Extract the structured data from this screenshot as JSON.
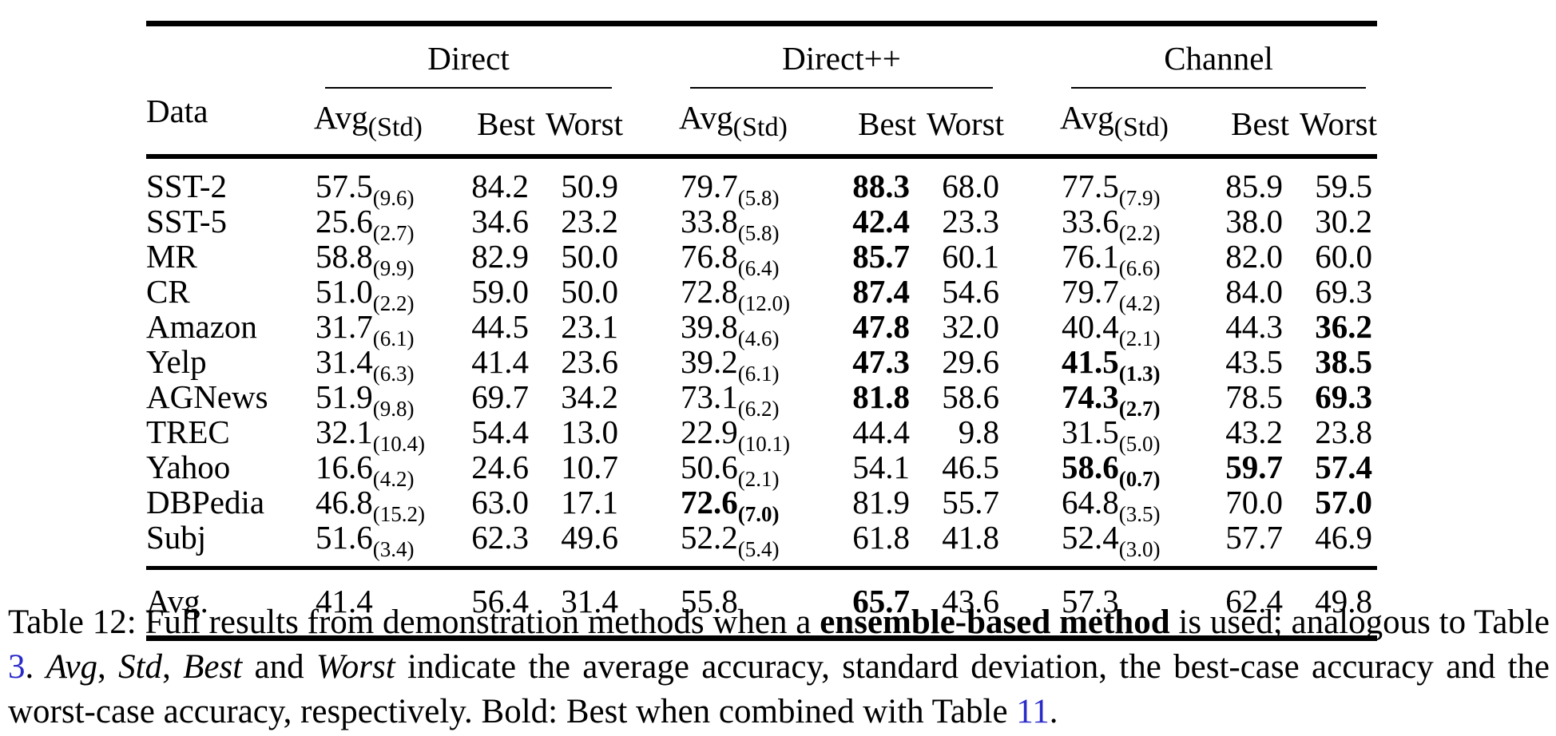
{
  "table": {
    "data_label": "Data",
    "avg_label": "Avg",
    "std_label": "(Std)",
    "best_label": "Best",
    "worst_label": "Worst",
    "groups": [
      "Direct",
      "Direct++",
      "Channel"
    ],
    "rows": [
      {
        "name": "SST-2",
        "cells": [
          {
            "v": "57.5",
            "s": "(9.6)"
          },
          {
            "v": "84.2"
          },
          {
            "v": "50.9"
          },
          {
            "v": "79.7",
            "s": "(5.8)"
          },
          {
            "v": "88.3",
            "b": 1
          },
          {
            "v": "68.0"
          },
          {
            "v": "77.5",
            "s": "(7.9)"
          },
          {
            "v": "85.9"
          },
          {
            "v": "59.5"
          }
        ]
      },
      {
        "name": "SST-5",
        "cells": [
          {
            "v": "25.6",
            "s": "(2.7)"
          },
          {
            "v": "34.6"
          },
          {
            "v": "23.2"
          },
          {
            "v": "33.8",
            "s": "(5.8)"
          },
          {
            "v": "42.4",
            "b": 1
          },
          {
            "v": "23.3"
          },
          {
            "v": "33.6",
            "s": "(2.2)"
          },
          {
            "v": "38.0"
          },
          {
            "v": "30.2"
          }
        ]
      },
      {
        "name": "MR",
        "cells": [
          {
            "v": "58.8",
            "s": "(9.9)"
          },
          {
            "v": "82.9"
          },
          {
            "v": "50.0"
          },
          {
            "v": "76.8",
            "s": "(6.4)"
          },
          {
            "v": "85.7",
            "b": 1
          },
          {
            "v": "60.1"
          },
          {
            "v": "76.1",
            "s": "(6.6)"
          },
          {
            "v": "82.0"
          },
          {
            "v": "60.0"
          }
        ]
      },
      {
        "name": "CR",
        "cells": [
          {
            "v": "51.0",
            "s": "(2.2)"
          },
          {
            "v": "59.0"
          },
          {
            "v": "50.0"
          },
          {
            "v": "72.8",
            "s": "(12.0)"
          },
          {
            "v": "87.4",
            "b": 1
          },
          {
            "v": "54.6"
          },
          {
            "v": "79.7",
            "s": "(4.2)"
          },
          {
            "v": "84.0"
          },
          {
            "v": "69.3"
          }
        ]
      },
      {
        "name": "Amazon",
        "cells": [
          {
            "v": "31.7",
            "s": "(6.1)"
          },
          {
            "v": "44.5"
          },
          {
            "v": "23.1"
          },
          {
            "v": "39.8",
            "s": "(4.6)"
          },
          {
            "v": "47.8",
            "b": 1
          },
          {
            "v": "32.0"
          },
          {
            "v": "40.4",
            "s": "(2.1)"
          },
          {
            "v": "44.3"
          },
          {
            "v": "36.2",
            "b": 1
          }
        ]
      },
      {
        "name": "Yelp",
        "cells": [
          {
            "v": "31.4",
            "s": "(6.3)"
          },
          {
            "v": "41.4"
          },
          {
            "v": "23.6"
          },
          {
            "v": "39.2",
            "s": "(6.1)"
          },
          {
            "v": "47.3",
            "b": 1
          },
          {
            "v": "29.6"
          },
          {
            "v": "41.5",
            "s": "(1.3)",
            "b": 1
          },
          {
            "v": "43.5"
          },
          {
            "v": "38.5",
            "b": 1
          }
        ]
      },
      {
        "name": "AGNews",
        "cells": [
          {
            "v": "51.9",
            "s": "(9.8)"
          },
          {
            "v": "69.7"
          },
          {
            "v": "34.2"
          },
          {
            "v": "73.1",
            "s": "(6.2)"
          },
          {
            "v": "81.8",
            "b": 1
          },
          {
            "v": "58.6"
          },
          {
            "v": "74.3",
            "s": "(2.7)",
            "b": 1
          },
          {
            "v": "78.5"
          },
          {
            "v": "69.3",
            "b": 1
          }
        ]
      },
      {
        "name": "TREC",
        "cells": [
          {
            "v": "32.1",
            "s": "(10.4)"
          },
          {
            "v": "54.4"
          },
          {
            "v": "13.0"
          },
          {
            "v": "22.9",
            "s": "(10.1)"
          },
          {
            "v": "44.4"
          },
          {
            "v": "9.8"
          },
          {
            "v": "31.5",
            "s": "(5.0)"
          },
          {
            "v": "43.2"
          },
          {
            "v": "23.8"
          }
        ]
      },
      {
        "name": "Yahoo",
        "cells": [
          {
            "v": "16.6",
            "s": "(4.2)"
          },
          {
            "v": "24.6"
          },
          {
            "v": "10.7"
          },
          {
            "v": "50.6",
            "s": "(2.1)"
          },
          {
            "v": "54.1"
          },
          {
            "v": "46.5"
          },
          {
            "v": "58.6",
            "s": "(0.7)",
            "b": 1
          },
          {
            "v": "59.7",
            "b": 1
          },
          {
            "v": "57.4",
            "b": 1
          }
        ]
      },
      {
        "name": "DBPedia",
        "cells": [
          {
            "v": "46.8",
            "s": "(15.2)"
          },
          {
            "v": "63.0"
          },
          {
            "v": "17.1"
          },
          {
            "v": "72.6",
            "s": "(7.0)",
            "b": 1
          },
          {
            "v": "81.9"
          },
          {
            "v": "55.7"
          },
          {
            "v": "64.8",
            "s": "(3.5)"
          },
          {
            "v": "70.0"
          },
          {
            "v": "57.0",
            "b": 1
          }
        ]
      },
      {
        "name": "Subj",
        "cells": [
          {
            "v": "51.6",
            "s": "(3.4)"
          },
          {
            "v": "62.3"
          },
          {
            "v": "49.6"
          },
          {
            "v": "52.2",
            "s": "(5.4)"
          },
          {
            "v": "61.8"
          },
          {
            "v": "41.8"
          },
          {
            "v": "52.4",
            "s": "(3.0)"
          },
          {
            "v": "57.7"
          },
          {
            "v": "46.9"
          }
        ]
      }
    ],
    "avg_row": {
      "name": "Avg.",
      "cells": [
        {
          "v": "41.4"
        },
        {
          "v": "56.4"
        },
        {
          "v": "31.4"
        },
        {
          "v": "55.8"
        },
        {
          "v": "65.7",
          "b": 1
        },
        {
          "v": "43.6"
        },
        {
          "v": "57.3"
        },
        {
          "v": "62.4"
        },
        {
          "v": "49.8"
        }
      ]
    }
  },
  "caption": {
    "link_color": "#2a2ac8",
    "segments": [
      {
        "t": "Table 12: Full results from demonstration methods when a "
      },
      {
        "t": "ensemble-based method",
        "style": "bold"
      },
      {
        "t": " is used; analogous to Table "
      },
      {
        "t": "3",
        "style": "link",
        "name": "table-3-link"
      },
      {
        "t": ". "
      },
      {
        "t": "Avg",
        "style": "italic"
      },
      {
        "t": ", "
      },
      {
        "t": "Std",
        "style": "italic"
      },
      {
        "t": ", "
      },
      {
        "t": "Best",
        "style": "italic"
      },
      {
        "t": " and "
      },
      {
        "t": "Worst",
        "style": "italic"
      },
      {
        "t": " indicate the average accuracy, standard deviation, the best-case accuracy and the worst-case accuracy, respectively. Bold: Best when combined with Table "
      },
      {
        "t": "11",
        "style": "link",
        "name": "table-11-link"
      },
      {
        "t": "."
      }
    ]
  }
}
